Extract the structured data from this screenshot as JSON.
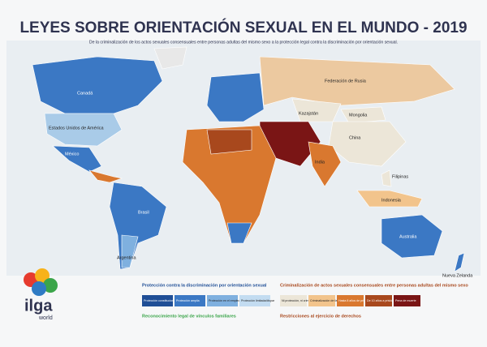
{
  "header": {
    "title": "LEYES SOBRE ORIENTACIÓN SEXUAL EN EL MUNDO - 2019",
    "subtitle": "De la criminalización de los actos sexuales consensuales entre personas adultas del mismo sexo a la protección legal contra la discriminación por orientación sexual."
  },
  "countries": [
    "Canadá",
    "Estados Unidos de América",
    "México",
    "Brasil",
    "Argentina",
    "Federación de Rusia",
    "Kazajstán",
    "Mongolia",
    "China",
    "India",
    "Filipinas",
    "Indonesia",
    "Australia",
    "Nueva Zelanda"
  ],
  "legend": {
    "protection": {
      "title": "Protección contra la discriminación por orientación sexual",
      "items": [
        {
          "label": "Protección constitucional",
          "color": "#1f4e96"
        },
        {
          "label": "Protección amplia",
          "color": "#3b78c4"
        },
        {
          "label": "Protección en el empleo",
          "color": "#7fb0df"
        },
        {
          "label": "Protección limitada/dispar",
          "color": "#c3dcf1"
        }
      ]
    },
    "criminalization": {
      "title": "Criminalización de actos sexuales consensuales entre personas adultas del mismo sexo",
      "items": [
        {
          "label": "Ni protección, ni criminalización",
          "color": "#ece6d8"
        },
        {
          "label": "Criminalización de facto",
          "color": "#f2c48c"
        },
        {
          "label": "Hasta 8 años de prisión",
          "color": "#d9782f"
        },
        {
          "label": "De 10 años a prisión perpetua",
          "color": "#a8481d"
        },
        {
          "label": "Pena de muerte",
          "color": "#7a1515"
        }
      ]
    },
    "family": {
      "title": "Reconocimiento legal de vínculos familiares"
    },
    "restrictions": {
      "title": "Restricciones al ejercicio de derechos"
    }
  },
  "logo": {
    "name": "ilga",
    "sub": "world"
  }
}
